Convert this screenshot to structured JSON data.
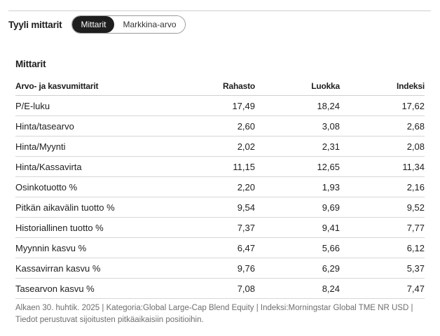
{
  "style_selector": {
    "label": "Tyyli mittarit",
    "options": [
      "Mittarit",
      "Markkina-arvo"
    ],
    "selected": "Mittarit"
  },
  "section": {
    "title": "Mittarit"
  },
  "table": {
    "headers": [
      "Arvo- ja kasvumittarit",
      "Rahasto",
      "Luokka",
      "Indeksi"
    ],
    "rows": [
      [
        "P/E-luku",
        "17,49",
        "18,24",
        "17,62"
      ],
      [
        "Hinta/tasearvo",
        "2,60",
        "3,08",
        "2,68"
      ],
      [
        "Hinta/Myynti",
        "2,02",
        "2,31",
        "2,08"
      ],
      [
        "Hinta/Kassavirta",
        "11,15",
        "12,65",
        "11,34"
      ],
      [
        "Osinkotuotto %",
        "2,20",
        "1,93",
        "2,16"
      ],
      [
        "Pitkän aikavälin tuotto %",
        "9,54",
        "9,69",
        "9,52"
      ],
      [
        "Historiallinen tuotto %",
        "7,37",
        "9,41",
        "7,77"
      ],
      [
        "Myynnin kasvu %",
        "6,47",
        "5,66",
        "6,12"
      ],
      [
        "Kassavirran kasvu %",
        "9,76",
        "6,29",
        "5,37"
      ],
      [
        "Tasearvon kasvu %",
        "7,08",
        "8,24",
        "7,47"
      ]
    ]
  },
  "footnote": {
    "line1": "Alkaen 30. huhtik. 2025 | Kategoria:Global Large-Cap Blend Equity | Indeksi:Morningstar Global TME NR USD |",
    "line2": "Tiedot perustuvat sijoitusten pitkäaikaisiin positioihin."
  }
}
